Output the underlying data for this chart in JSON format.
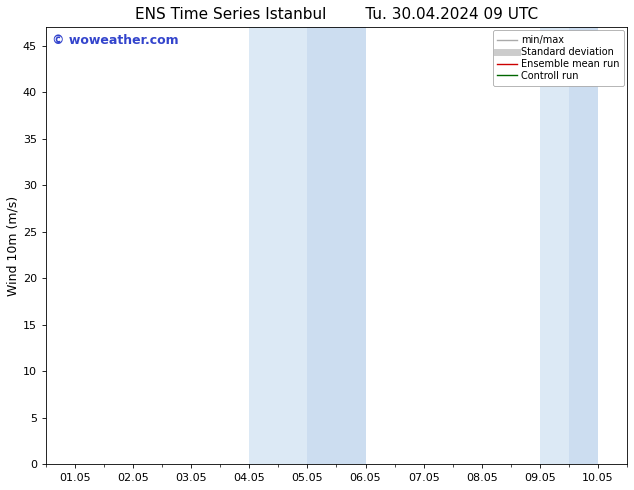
{
  "title_left": "ENS Time Series Istanbul",
  "title_right": "Tu. 30.04.2024 09 UTC",
  "ylabel": "Wind 10m (m/s)",
  "ylim": [
    0,
    47
  ],
  "yticks": [
    0,
    5,
    10,
    15,
    20,
    25,
    30,
    35,
    40,
    45
  ],
  "xtick_labels": [
    "01.05",
    "02.05",
    "03.05",
    "04.05",
    "05.05",
    "06.05",
    "07.05",
    "08.05",
    "09.05",
    "10.05"
  ],
  "xtick_positions": [
    0,
    1,
    2,
    3,
    4,
    5,
    6,
    7,
    8,
    9
  ],
  "xmin": -0.5,
  "xmax": 9.5,
  "shaded_bands": [
    {
      "x_start": 3.0,
      "x_end": 4.0,
      "color": "#dce9f5"
    },
    {
      "x_start": 4.0,
      "x_end": 5.0,
      "color": "#ccddf0"
    },
    {
      "x_start": 8.0,
      "x_end": 8.5,
      "color": "#dce9f5"
    },
    {
      "x_start": 8.5,
      "x_end": 9.0,
      "color": "#ccddf0"
    }
  ],
  "bg_color": "#ffffff",
  "watermark_text": "© woweather.com",
  "watermark_color": "#3344cc",
  "legend_entries": [
    {
      "label": "min/max",
      "color": "#aaaaaa",
      "lw": 1.0,
      "style": "solid"
    },
    {
      "label": "Standard deviation",
      "color": "#cccccc",
      "lw": 5,
      "style": "solid"
    },
    {
      "label": "Ensemble mean run",
      "color": "#cc0000",
      "lw": 1.0,
      "style": "solid"
    },
    {
      "label": "Controll run",
      "color": "#006600",
      "lw": 1.0,
      "style": "solid"
    }
  ],
  "font_size_title": 11,
  "font_size_ticks": 8,
  "font_size_legend": 7,
  "font_size_ylabel": 9,
  "font_size_watermark": 9
}
